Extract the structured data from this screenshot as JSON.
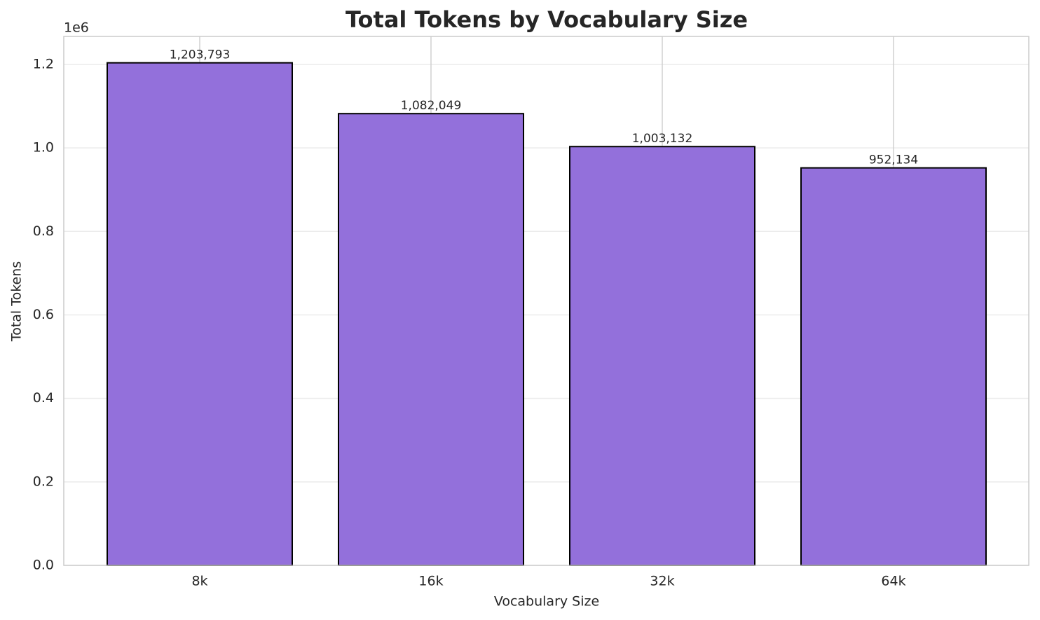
{
  "chart_data": {
    "type": "bar",
    "title": "Total Tokens by Vocabulary Size",
    "x_label": "Vocabulary Size",
    "y_label": "Total Tokens",
    "y_offset_label": "1e6",
    "categories": [
      "8k",
      "16k",
      "32k",
      "64k"
    ],
    "values": [
      1203793,
      1082049,
      1003132,
      952134
    ],
    "value_labels": [
      "1,203,793",
      "1,082,049",
      "1,003,132",
      "952,134"
    ],
    "color": "#9370db",
    "edgecolor": "#000000",
    "ylim": [
      0,
      1267000
    ],
    "yticks": [
      {
        "value": 0,
        "label": "0.0"
      },
      {
        "value": 200000,
        "label": "0.2"
      },
      {
        "value": 400000,
        "label": "0.4"
      },
      {
        "value": 600000,
        "label": "0.6"
      },
      {
        "value": 800000,
        "label": "0.8"
      },
      {
        "value": 1000000,
        "label": "1.0"
      },
      {
        "value": 1200000,
        "label": "1.2"
      }
    ],
    "grid": true
  }
}
